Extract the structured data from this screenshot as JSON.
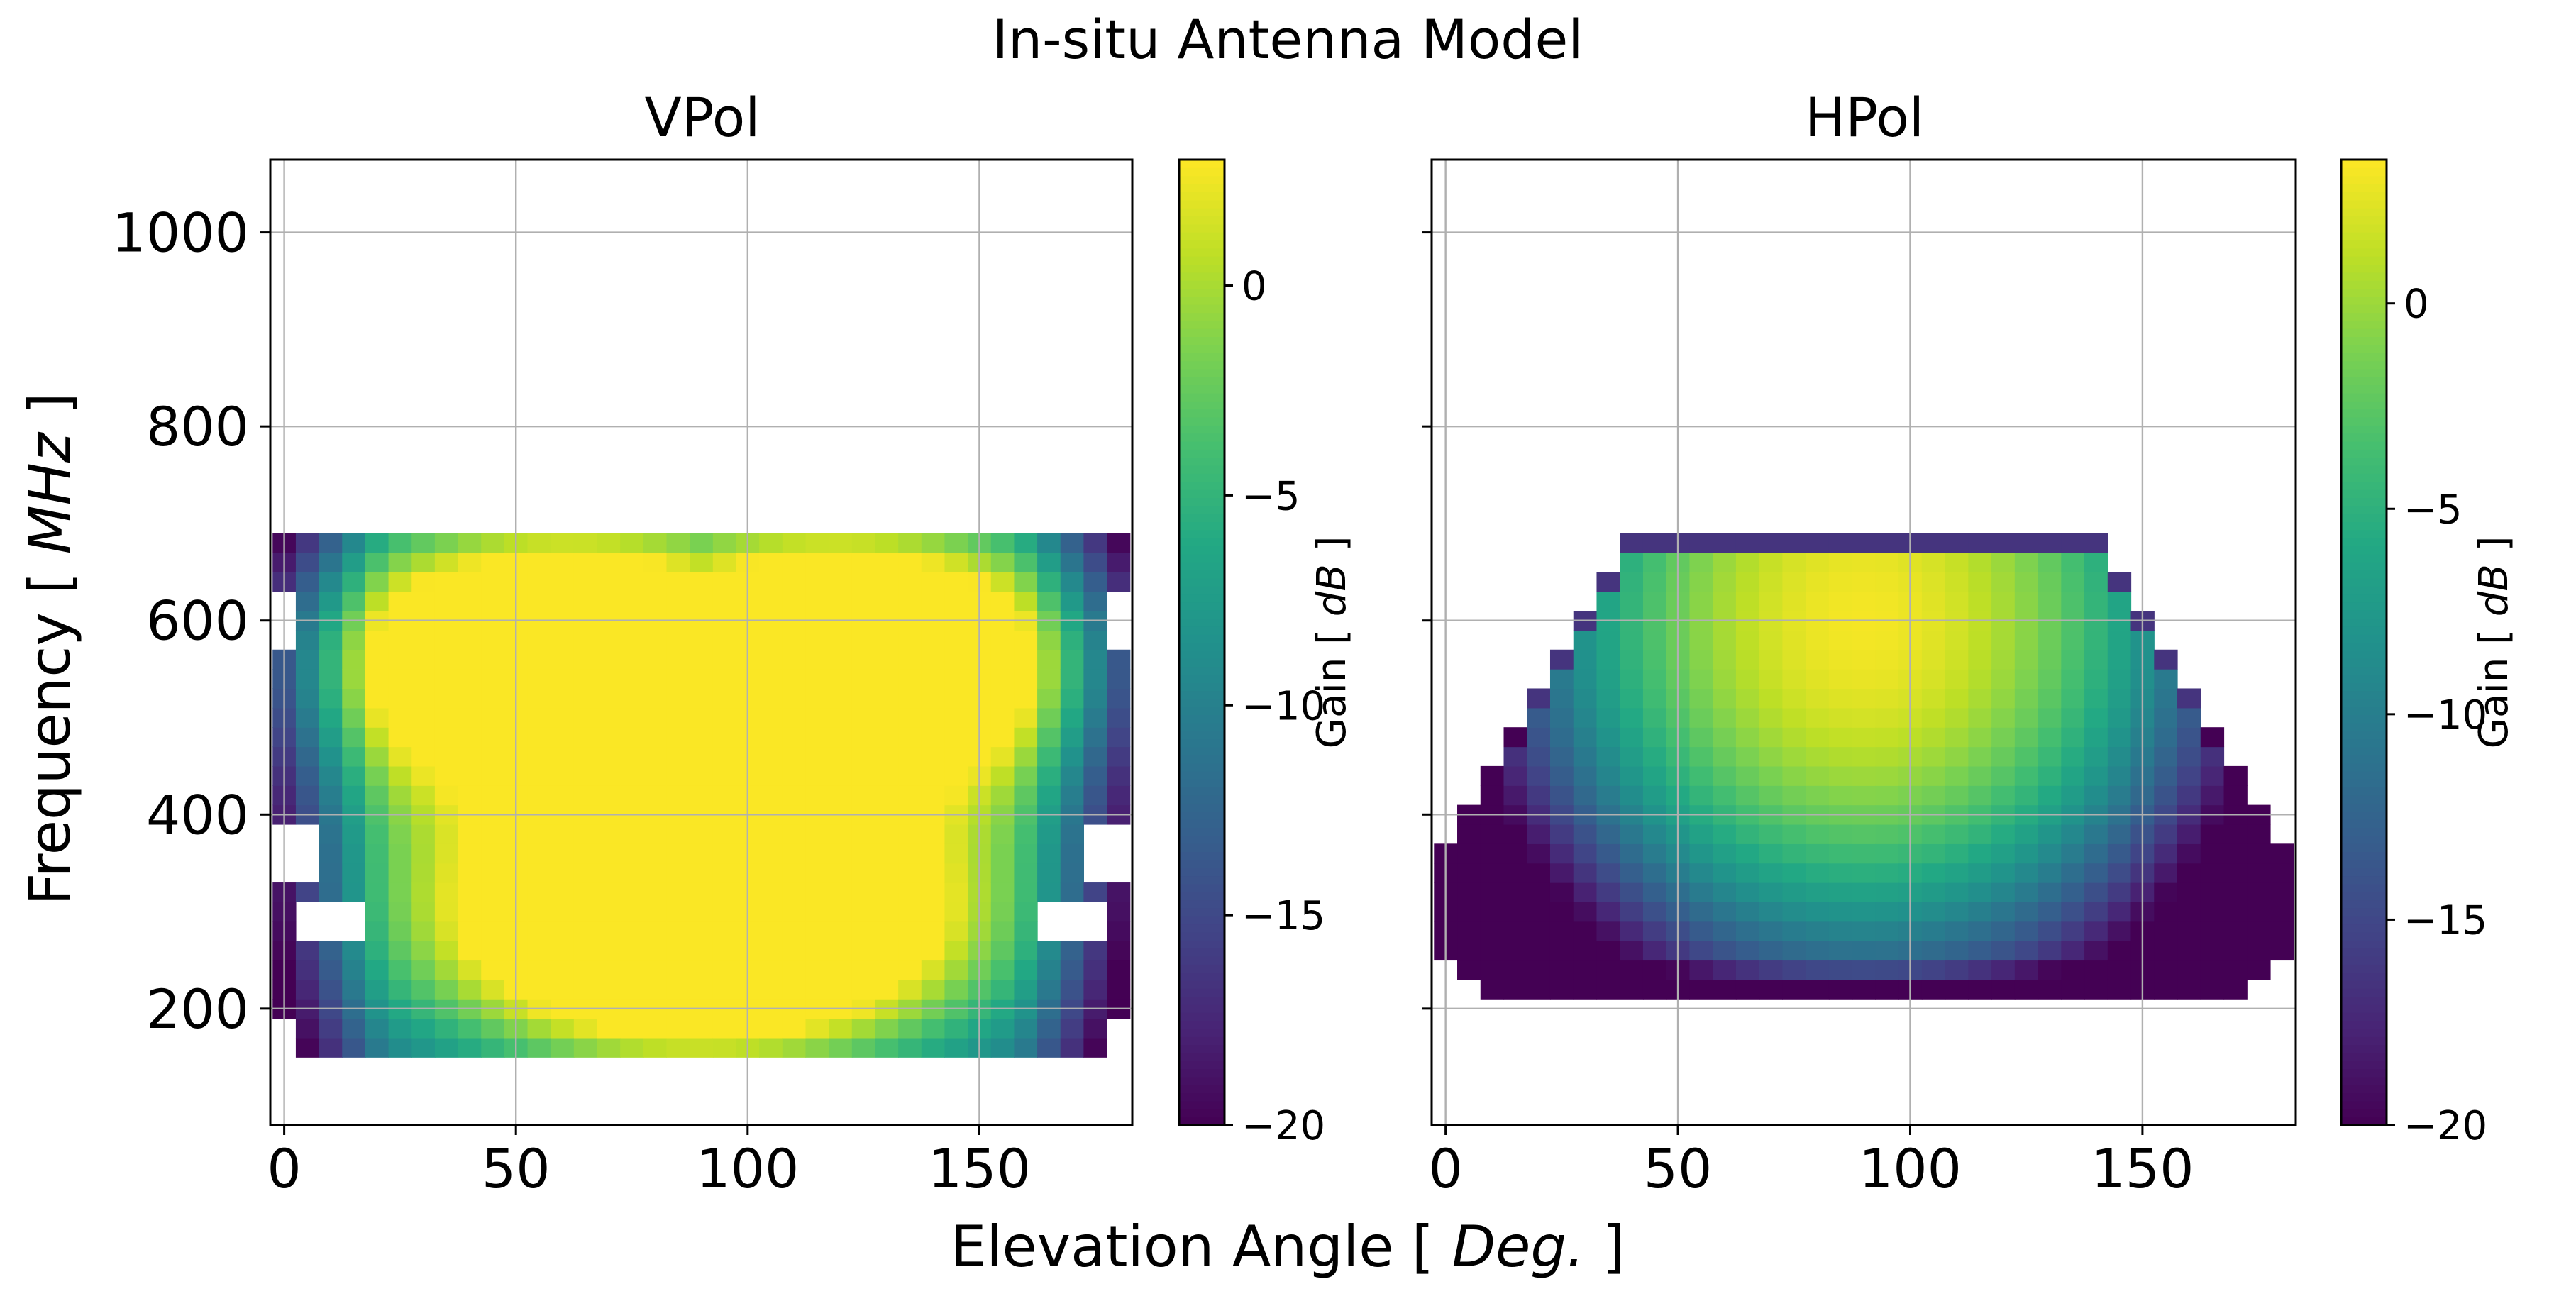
{
  "figure": {
    "title": "In-situ Antenna Model",
    "xlabel": "Elevation Angle [ ",
    "xlabel_unit": "Deg.",
    "xlabel_end": " ]",
    "ylabel": "Frequency [ ",
    "ylabel_unit": "MHz",
    "ylabel_end": " ]"
  },
  "chart_data": [
    {
      "type": "heatmap",
      "title": "VPol",
      "x_range": [
        -3,
        183
      ],
      "y_range": [
        80,
        1075
      ],
      "xticks": [
        0,
        50,
        100,
        150
      ],
      "yticks": [
        200,
        400,
        600,
        800,
        1000
      ],
      "grid": true,
      "cmap": "viridis",
      "vmin": -20,
      "vmax": 3,
      "colorbar_label": "Gain [ ",
      "colorbar_unit": "dB",
      "colorbar_end": " ]",
      "colorbar_ticks": [
        0,
        -5,
        -10,
        -15,
        -20
      ],
      "elevation_step_deg": 5,
      "frequency_step_mhz": 20,
      "frequency_min_mhz": 150,
      "frequency_max_mhz": 690,
      "peaks": [
        {
          "elevation": 55,
          "frequency": 565,
          "gain": 2.6
        },
        {
          "elevation": 125,
          "frequency": 565,
          "gain": 2.6
        },
        {
          "elevation": 90,
          "frequency": 280,
          "gain": 2.9
        }
      ]
    },
    {
      "type": "heatmap",
      "title": "HPol",
      "x_range": [
        -3,
        183
      ],
      "y_range": [
        80,
        1075
      ],
      "xticks": [
        0,
        50,
        100,
        150
      ],
      "yticks": [
        200,
        400,
        600,
        800,
        1000
      ],
      "grid": true,
      "cmap": "viridis",
      "vmin": -20,
      "vmax": 3.5,
      "colorbar_label": "Gain [ ",
      "colorbar_unit": "dB",
      "colorbar_end": " ]",
      "colorbar_ticks": [
        0,
        -5,
        -10,
        -15,
        -20
      ],
      "elevation_step_deg": 5,
      "frequency_step_mhz": 20,
      "frequency_min_mhz": 210,
      "frequency_max_mhz": 690,
      "peaks": [
        {
          "elevation": 90,
          "frequency": 600,
          "gain": 3.2
        }
      ]
    }
  ]
}
